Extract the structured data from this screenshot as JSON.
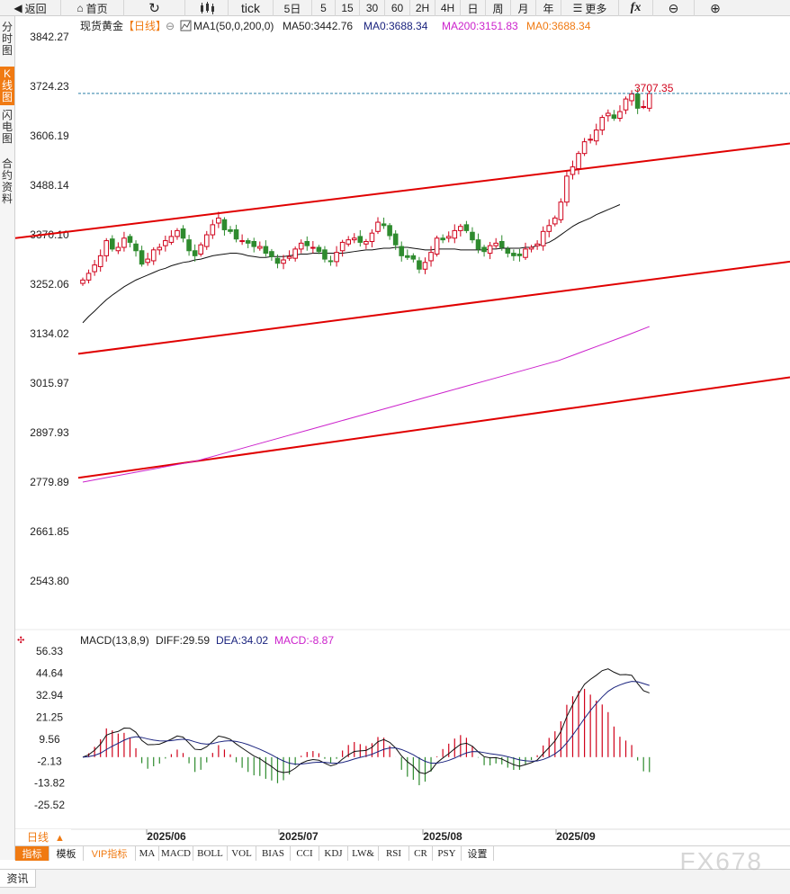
{
  "toolbar": {
    "back": "返回",
    "home": "首页",
    "refresh_icon": "refresh-icon",
    "candle_icon": "candlestick-icon",
    "tick": "tick",
    "periods": [
      "5日",
      "5",
      "15",
      "30",
      "60",
      "2H",
      "4H",
      "日",
      "周",
      "月",
      "年"
    ],
    "more": "更多",
    "fx": "fx",
    "zoom_out_icon": "zoom-out-icon",
    "zoom_in_icon": "zoom-in-icon"
  },
  "sidebar": {
    "tabs": [
      "分时图",
      "K线图",
      "闪电图",
      "合约资料"
    ],
    "active": 1
  },
  "main_panel": {
    "title": "现货黄金",
    "period_tag": "【日线】",
    "ma_label": "MA1(50,0,200,0)",
    "ma50": "MA50:3442.76",
    "ma0a": "MA0:3688.34",
    "ma200": "MA200:3151.83",
    "ma0b": "MA0:3688.34",
    "last_price_label": "3707.35",
    "y_ticks": [
      "3842.27",
      "3724.23",
      "3606.19",
      "3488.14",
      "3370.10",
      "3252.06",
      "3134.02",
      "3015.97",
      "2897.93",
      "2779.89",
      "2661.85",
      "2543.80"
    ],
    "colors": {
      "up": "#d0021b",
      "down": "#2e8b2e",
      "ma50": "#111111",
      "ma200": "#cc22cc",
      "trend": "#e00000",
      "priceline": "#2a7fa8",
      "ma0": "#1a237e",
      "ma0b": "#f07a12"
    }
  },
  "macd_panel": {
    "label": "MACD(13,8,9)",
    "diff": "DIFF:29.59",
    "dea": "DEA:34.02",
    "macd": "MACD:-8.87",
    "y_ticks": [
      "56.33",
      "44.64",
      "32.94",
      "21.25",
      "9.56",
      "-2.13",
      "-13.82",
      "-25.52"
    ]
  },
  "x_axis": {
    "months": [
      "2025/06",
      "2025/07",
      "2025/08",
      "2025/09"
    ]
  },
  "bottom_tabs": {
    "period": "日线",
    "items": [
      "指标",
      "模板",
      "VIP指标",
      "MA",
      "MACD",
      "BOLL",
      "VOL",
      "BIAS",
      "CCI",
      "KDJ",
      "LW&",
      "RSI",
      "CR",
      "PSY",
      "设置"
    ]
  },
  "info_bar": {
    "label": "资讯"
  },
  "watermark": "FX678",
  "chart_data": {
    "type": "candlestick",
    "title": "现货黄金",
    "period": "日线",
    "ylim": [
      2520,
      3860
    ],
    "last_price": 3707.35,
    "closes": [
      3262,
      3278,
      3298,
      3320,
      3356,
      3336,
      3340,
      3362,
      3352,
      3332,
      3300,
      3312,
      3334,
      3340,
      3356,
      3366,
      3380,
      3362,
      3332,
      3320,
      3346,
      3370,
      3394,
      3410,
      3382,
      3378,
      3360,
      3356,
      3350,
      3342,
      3342,
      3326,
      3318,
      3302,
      3310,
      3318,
      3336,
      3350,
      3344,
      3340,
      3330,
      3312,
      3306,
      3328,
      3352,
      3358,
      3362,
      3352,
      3354,
      3374,
      3400,
      3392,
      3368,
      3346,
      3320,
      3316,
      3312,
      3288,
      3304,
      3328,
      3362,
      3358,
      3366,
      3380,
      3390,
      3380,
      3358,
      3336,
      3330,
      3344,
      3350,
      3340,
      3326,
      3320,
      3320,
      3336,
      3340,
      3348,
      3378,
      3392,
      3410,
      3448,
      3510,
      3532,
      3564,
      3592,
      3598,
      3620,
      3650,
      3660,
      3648,
      3664,
      3694,
      3706,
      3672,
      3676,
      3707
    ],
    "ma50": [
      3160,
      3175,
      3188,
      3202,
      3215,
      3226,
      3236,
      3246,
      3254,
      3262,
      3268,
      3274,
      3280,
      3286,
      3290,
      3296,
      3300,
      3304,
      3306,
      3310,
      3312,
      3316,
      3320,
      3322,
      3324,
      3326,
      3326,
      3324,
      3320,
      3318,
      3316,
      3316,
      3318,
      3318,
      3318,
      3320,
      3322,
      3324,
      3324,
      3326,
      3326,
      3326,
      3326,
      3326,
      3326,
      3328,
      3330,
      3332,
      3334,
      3334,
      3336,
      3338,
      3338,
      3340,
      3340,
      3340,
      3338,
      3336,
      3334,
      3334,
      3336,
      3336,
      3336,
      3336,
      3334,
      3334,
      3334,
      3334,
      3334,
      3336,
      3336,
      3338,
      3338,
      3338,
      3338,
      3340,
      3340,
      3344,
      3348,
      3352,
      3360,
      3370,
      3380,
      3390,
      3398,
      3404,
      3410,
      3418,
      3424,
      3430,
      3436,
      3442
    ],
    "ma200": [
      2780,
      2790,
      2800,
      2810,
      2820,
      2830,
      2845,
      2860,
      2875,
      2890,
      2905,
      2920,
      2935,
      2950,
      2965,
      2980,
      2995,
      3010,
      3025,
      3040,
      3055,
      3070,
      3090,
      3110,
      3130,
      3151
    ]
  }
}
